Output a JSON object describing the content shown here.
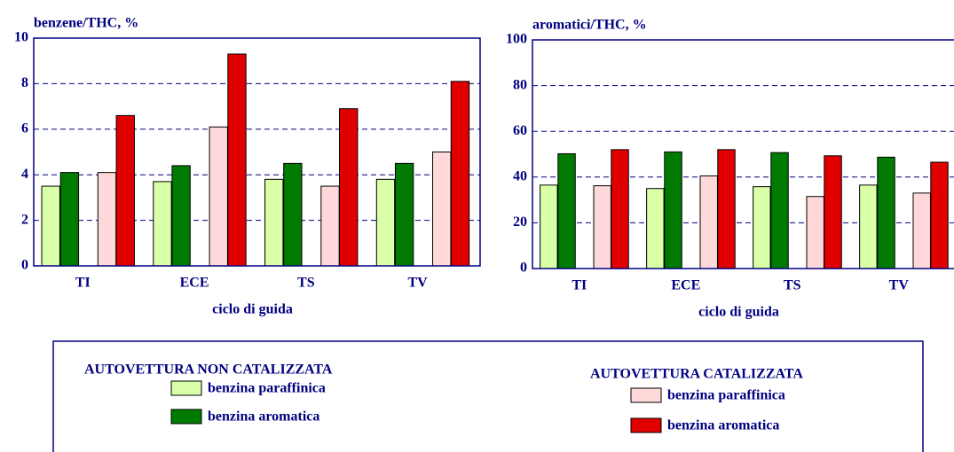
{
  "chart_data": [
    {
      "type": "bar",
      "title": "benzene/THC, %",
      "x_label": "ciclo di guida",
      "categories": [
        "TI",
        "ECE",
        "TS",
        "TV"
      ],
      "series": [
        {
          "name": "benzina paraffinica",
          "color": "#d9ffa8",
          "values": [
            3.5,
            3.7,
            3.8,
            3.8
          ]
        },
        {
          "name": "benzina aromatica",
          "color": "#007a00",
          "values": [
            4.1,
            4.4,
            4.5,
            4.5
          ]
        },
        {
          "name": "benzina paraffinica",
          "color": "#ffd9d9",
          "values": [
            4.1,
            6.1,
            3.5,
            5.0
          ]
        },
        {
          "name": "benzina aromatica",
          "color": "#e00000",
          "values": [
            6.6,
            9.3,
            6.9,
            8.1
          ]
        }
      ],
      "ylim": [
        0,
        10
      ],
      "yticks": [
        0,
        2,
        4,
        6,
        8,
        10
      ],
      "grid": true
    },
    {
      "type": "bar",
      "title": "aromatici/THC, %",
      "x_label": "ciclo di guida",
      "categories": [
        "TI",
        "ECE",
        "TS",
        "TV"
      ],
      "series": [
        {
          "name": "benzina paraffinica",
          "color": "#d9ffa8",
          "values": [
            36.5,
            35,
            35.8,
            36.5
          ]
        },
        {
          "name": "benzina aromatica",
          "color": "#007a00",
          "values": [
            50.2,
            51,
            50.7,
            48.7
          ]
        },
        {
          "name": "benzina paraffinica",
          "color": "#ffd9d9",
          "values": [
            36.2,
            40.5,
            31.5,
            33
          ]
        },
        {
          "name": "benzina aromatica",
          "color": "#e00000",
          "values": [
            52,
            52,
            49.3,
            46.5
          ]
        }
      ],
      "ylim": [
        0,
        100
      ],
      "yticks": [
        0,
        20,
        40,
        60,
        80,
        100
      ],
      "grid": true
    }
  ],
  "legend_groups": [
    "AUTOVETTURA NON CATALIZZATA",
    "AUTOVETTURA CATALIZZATA"
  ]
}
